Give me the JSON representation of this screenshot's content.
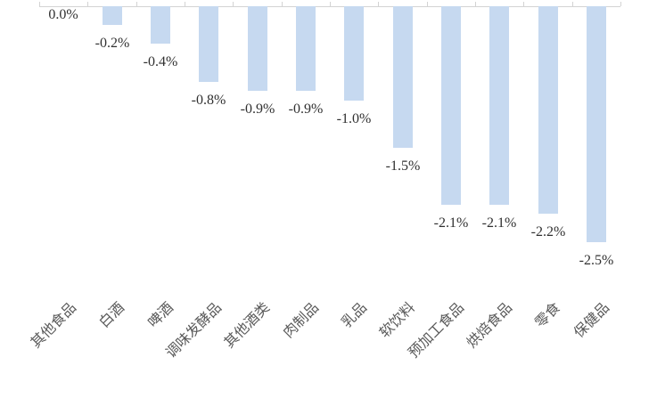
{
  "chart_data": {
    "type": "bar",
    "orientation": "vertical",
    "baseline": "top",
    "title": "",
    "xlabel": "",
    "ylabel": "",
    "unit": "%",
    "ylim": [
      -3.0,
      0
    ],
    "grid": false,
    "legend": false,
    "value_label_position": "outside-end-below-bar",
    "categories": [
      "其他食品",
      "白酒",
      "啤酒",
      "调味发酵品",
      "其他酒类",
      "肉制品",
      "乳品",
      "软饮料",
      "预加工食品",
      "烘焙食品",
      "零食",
      "保健品"
    ],
    "values": [
      0.0,
      -0.2,
      -0.4,
      -0.8,
      -0.9,
      -0.9,
      -1.0,
      -1.5,
      -2.1,
      -2.1,
      -2.2,
      -2.5
    ],
    "value_labels": [
      "0.0%",
      "-0.2%",
      "-0.4%",
      "-0.8%",
      "-0.9%",
      "-0.9%",
      "-1.0%",
      "-1.5%",
      "-2.1%",
      "-2.1%",
      "-2.2%",
      "-2.5%"
    ],
    "colors": {
      "bar_fill": "#c6d9f0",
      "axis_line": "#d3d3d3",
      "value_label_text": "#303030",
      "category_label_text": "#595959",
      "background": "#ffffff"
    }
  }
}
